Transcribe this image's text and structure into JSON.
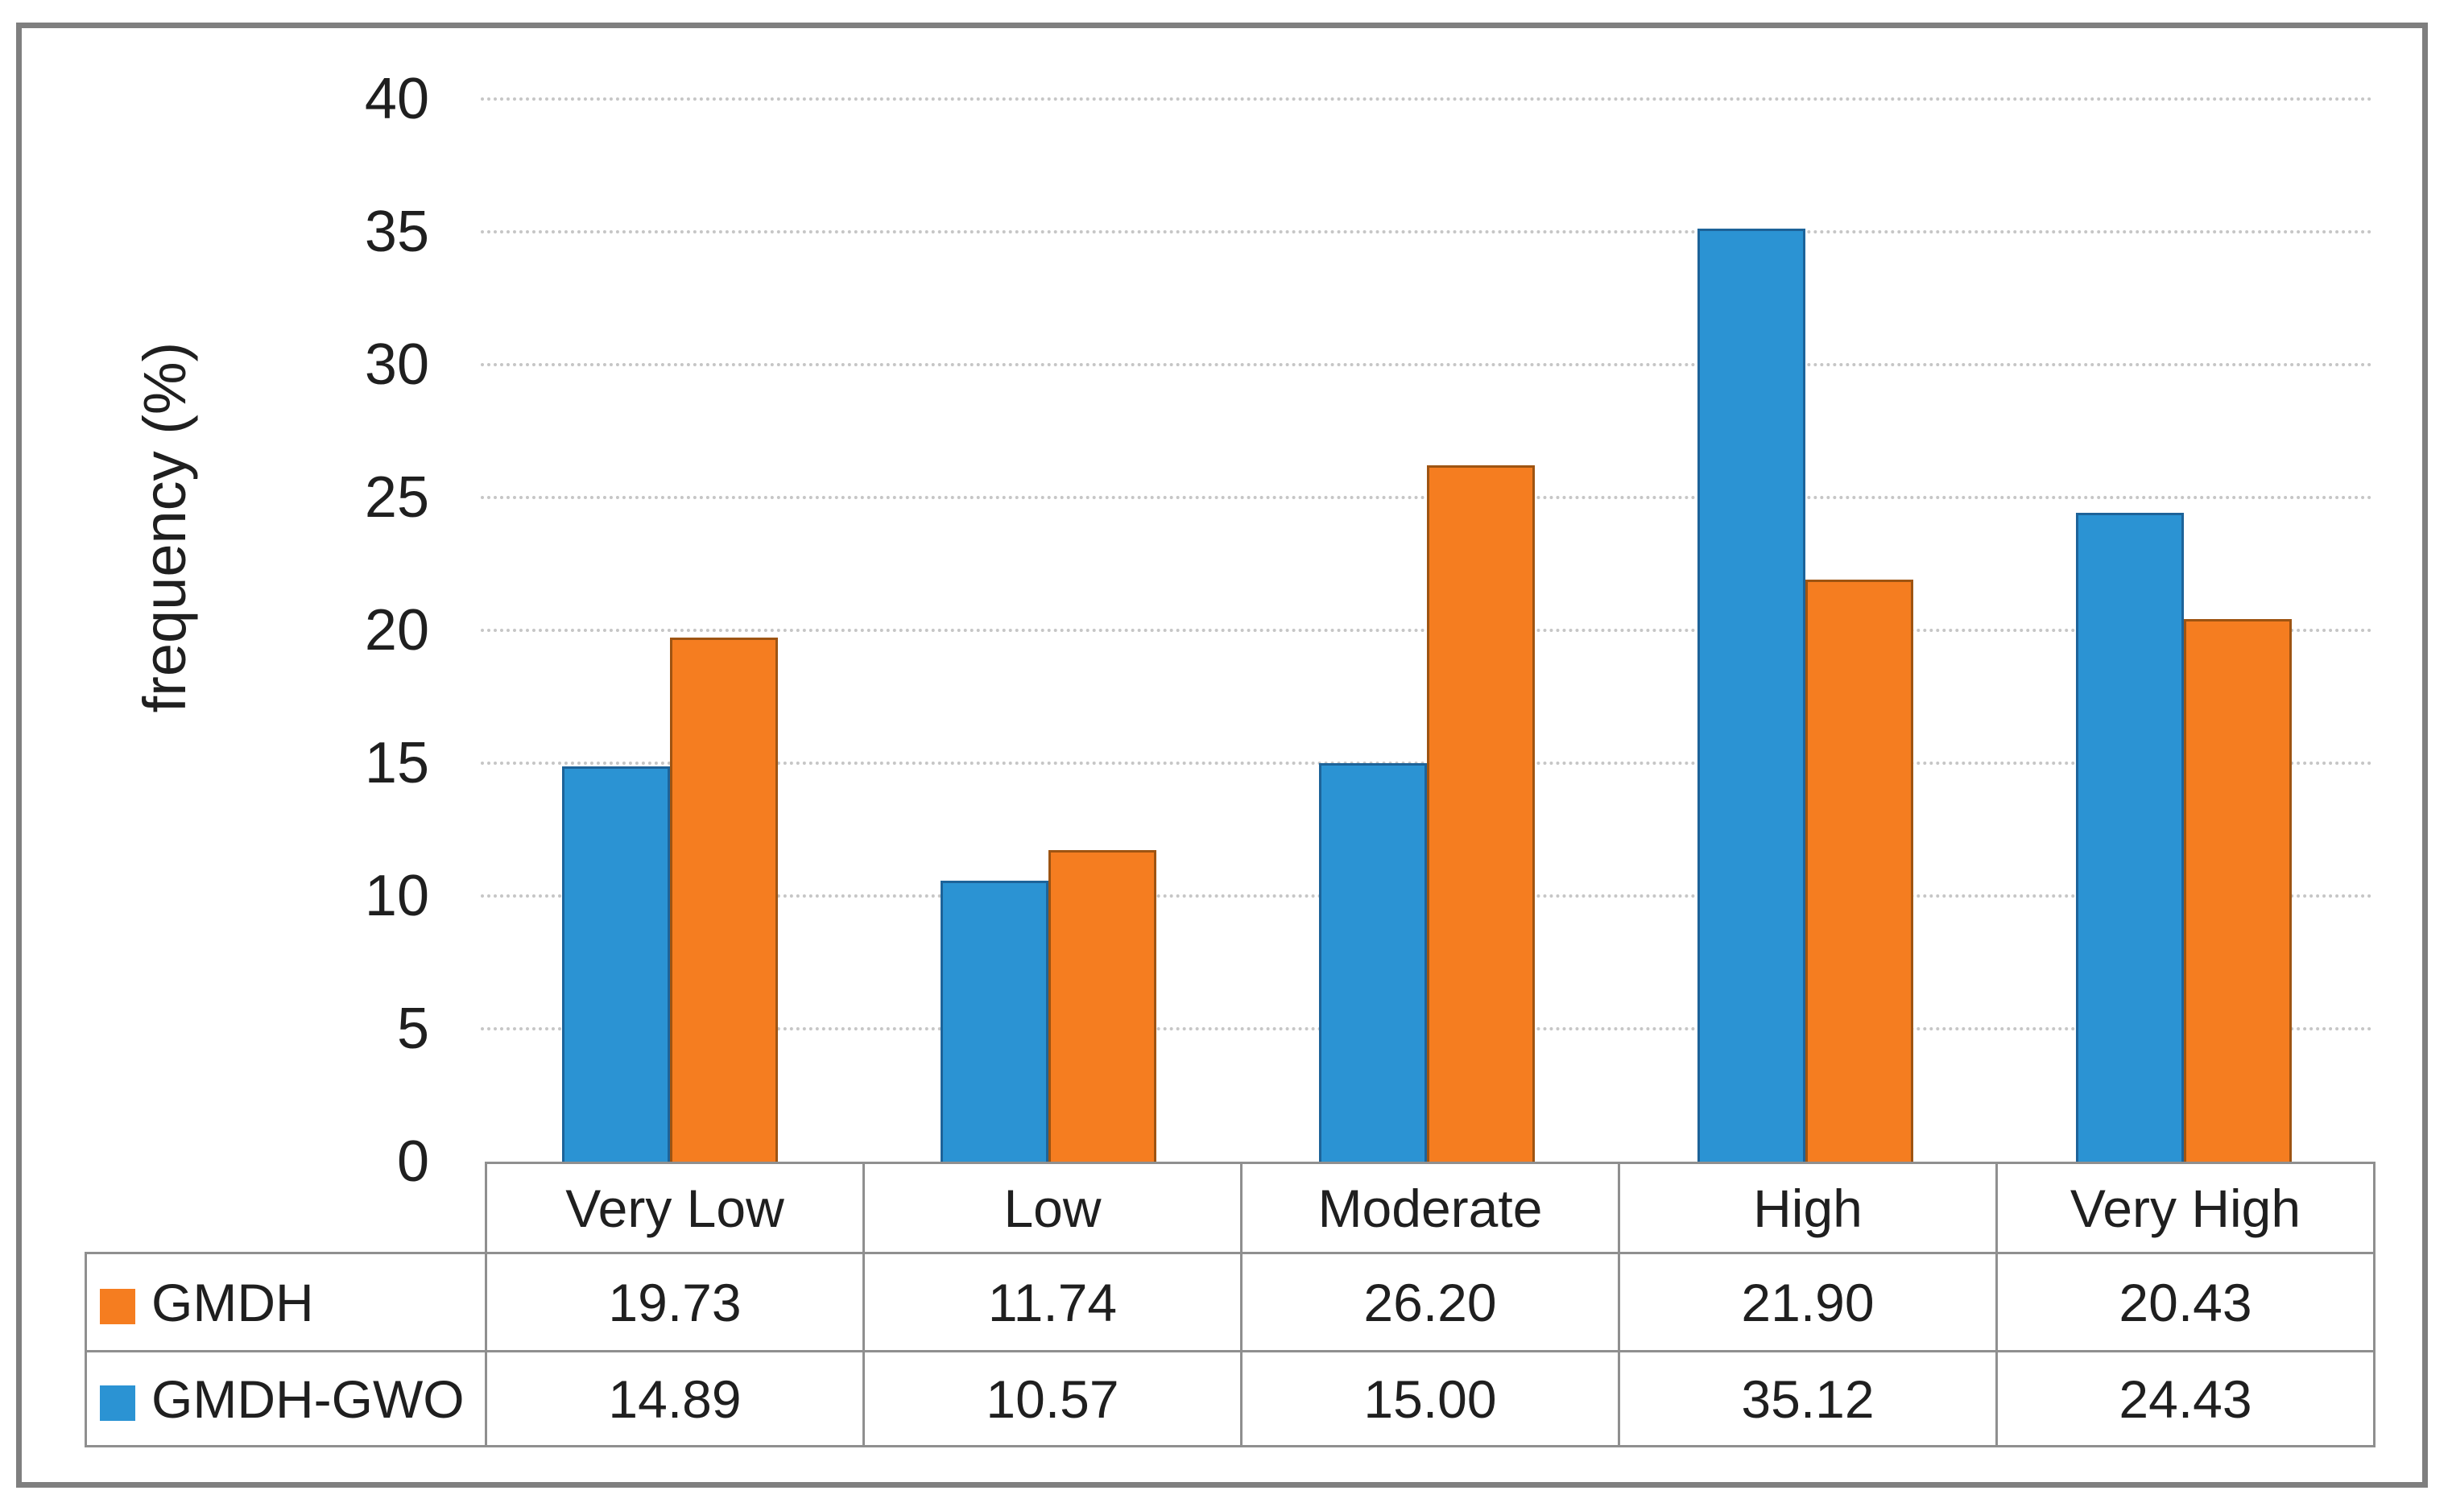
{
  "figure": {
    "background": "#ffffff",
    "frame_border_color": "#7f7f7f"
  },
  "chart_data": {
    "type": "bar",
    "title": "",
    "xlabel": "",
    "ylabel": "frequency (%)",
    "categories": [
      "Very Low",
      "Low",
      "Moderate",
      "High",
      "Very High"
    ],
    "series": [
      {
        "name": "GMDH",
        "color": "#f57d20",
        "border_color": "#9e5412",
        "values": [
          "19.73",
          "11.74",
          "26.20",
          "21.90",
          "20.43"
        ]
      },
      {
        "name": "GMDH-GWO",
        "color": "#2b93d3",
        "border_color": "#1d6399",
        "values": [
          "14.89",
          "10.57",
          "15.00",
          "35.12",
          "24.43"
        ]
      }
    ],
    "bar_plot_order": [
      "GMDH-GWO",
      "GMDH"
    ],
    "ylim": [
      0,
      40
    ],
    "yticks": [
      0,
      5,
      10,
      15,
      20,
      25,
      30,
      35,
      40
    ],
    "grid": "horizontal-dotted",
    "gridline_color": "#c6c6c6",
    "legend_position": "table-left-column",
    "table_border_color": "#8f8f8f",
    "text_color": "#1f1f1f"
  }
}
